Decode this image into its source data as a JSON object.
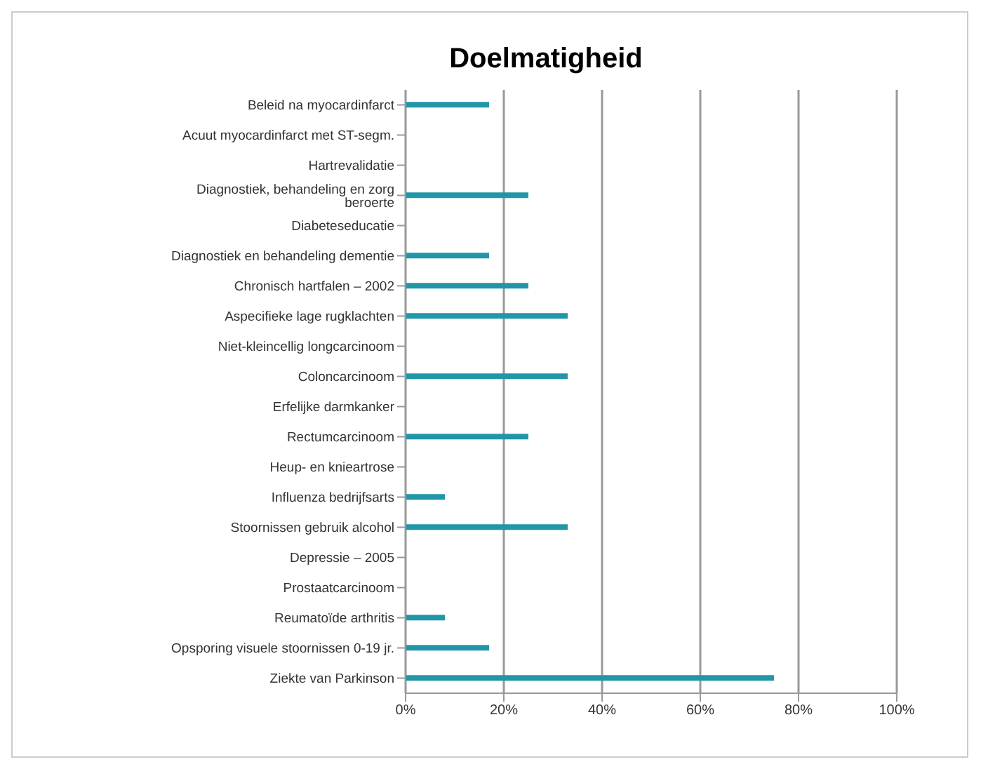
{
  "chart_data": {
    "type": "bar",
    "title": "Doelmatigheid",
    "orientation": "horizontal",
    "categories": [
      "Beleid na myocardinfarct",
      "Acuut myocardinfarct met ST-segm.",
      "Hartrevalidatie",
      "Diagnostiek, behandeling en zorg beroerte",
      "Diabeteseducatie",
      "Diagnostiek en behandeling dementie",
      "Chronisch hartfalen – 2002",
      "Aspecifieke lage rugklachten",
      "Niet-kleincellig longcarcinoom",
      "Coloncarcinoom",
      "Erfelijke darmkanker",
      "Rectumcarcinoom",
      "Heup- en knieartrose",
      "Influenza bedrijfsarts",
      "Stoornissen gebruik alcohol",
      "Depressie – 2005",
      "Prostaatcarcinoom",
      "Reumatoïde arthritis",
      "Opsporing visuele stoornissen 0-19 jr.",
      "Ziekte van Parkinson"
    ],
    "values": [
      17,
      0,
      0,
      25,
      0,
      17,
      25,
      33,
      0,
      33,
      0,
      25,
      0,
      8,
      33,
      0,
      0,
      8,
      17,
      75
    ],
    "color": "#2196a8",
    "xlim": [
      0,
      100
    ],
    "xticks": [
      {
        "value": 0,
        "label": "0%"
      },
      {
        "value": 20,
        "label": "20%"
      },
      {
        "value": 40,
        "label": "40%"
      },
      {
        "value": 60,
        "label": "60%"
      },
      {
        "value": 80,
        "label": "80%"
      },
      {
        "value": 100,
        "label": "100%"
      }
    ],
    "grid": "x"
  }
}
